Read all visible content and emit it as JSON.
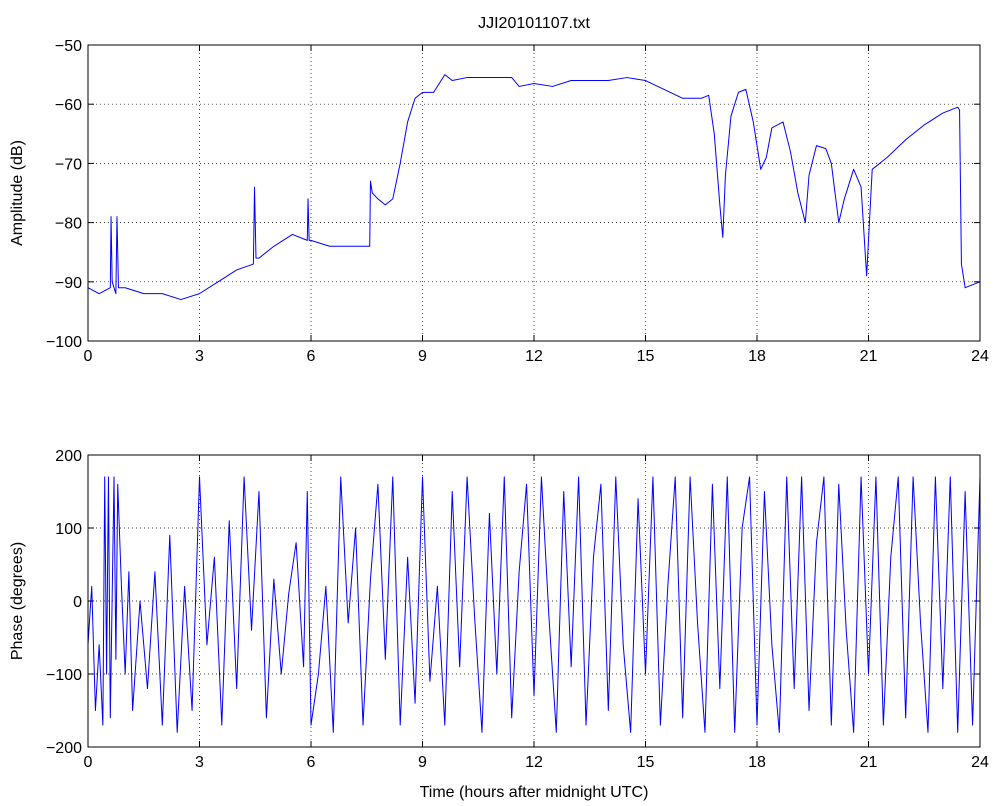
{
  "chart_data": [
    {
      "type": "line",
      "title": "JJI20101107.txt",
      "xlabel": "",
      "ylabel": "Amplitude (dB)",
      "xlim": [
        0,
        24
      ],
      "ylim": [
        -100,
        -50
      ],
      "xticks": [
        "0",
        "3",
        "6",
        "9",
        "12",
        "15",
        "18",
        "21",
        "24"
      ],
      "yticks": [
        "−100",
        "−90",
        "−80",
        "−70",
        "−60",
        "−50"
      ],
      "grid": true,
      "color": "#0000ff",
      "series": [
        {
          "x": [
            0,
            0.3,
            0.6,
            0.62,
            0.65,
            0.75,
            0.78,
            0.82,
            1.0,
            1.5,
            2.0,
            2.5,
            3.0,
            3.5,
            4.0,
            4.45,
            4.48,
            4.52,
            4.6,
            5.0,
            5.5,
            5.9,
            5.92,
            5.95,
            6.0,
            6.5,
            7.0,
            7.5,
            7.58,
            7.6,
            7.65,
            7.8,
            8.0,
            8.2,
            8.4,
            8.6,
            8.8,
            9.0,
            9.3,
            9.6,
            9.8,
            10.2,
            10.8,
            11.4,
            11.6,
            12.0,
            12.5,
            13.0,
            13.5,
            14.0,
            14.5,
            15.0,
            15.5,
            16.0,
            16.5,
            16.7,
            16.85,
            17.0,
            17.08,
            17.15,
            17.3,
            17.5,
            17.7,
            17.9,
            18.1,
            18.25,
            18.4,
            18.7,
            18.9,
            19.1,
            19.3,
            19.4,
            19.6,
            19.85,
            20.0,
            20.2,
            20.35,
            20.6,
            20.8,
            20.9,
            20.95,
            21.1,
            21.5,
            22.0,
            22.5,
            23.0,
            23.4,
            23.45,
            23.5,
            23.6,
            24.0
          ],
          "y": [
            -91,
            -92,
            -91,
            -79,
            -90,
            -92,
            -79,
            -91,
            -91,
            -92,
            -92,
            -93,
            -92,
            -90,
            -88,
            -87,
            -74,
            -86,
            -86,
            -84,
            -82,
            -83,
            -76,
            -83,
            -83,
            -84,
            -84,
            -84,
            -84,
            -73,
            -75,
            -76,
            -77,
            -76,
            -70,
            -63,
            -59,
            -58,
            -58,
            -55,
            -56,
            -55.5,
            -55.5,
            -55.5,
            -57,
            -56.5,
            -57,
            -56,
            -56,
            -56,
            -55.5,
            -56,
            -57.5,
            -59,
            -59,
            -58.5,
            -65,
            -77,
            -82.5,
            -72,
            -62,
            -58,
            -57.5,
            -63,
            -71,
            -69,
            -64,
            -63,
            -68,
            -75,
            -80,
            -72,
            -67,
            -67.5,
            -70,
            -80,
            -76,
            -71,
            -74,
            -84,
            -89,
            -71,
            -69,
            -66,
            -63.5,
            -61.5,
            -60.5,
            -61,
            -87,
            -91,
            -90
          ]
        }
      ]
    },
    {
      "type": "line",
      "title": "",
      "xlabel": "Time (hours after midnight UTC)",
      "ylabel": "Phase (degrees)",
      "xlim": [
        0,
        24
      ],
      "ylim": [
        -200,
        200
      ],
      "xticks": [
        "0",
        "3",
        "6",
        "9",
        "12",
        "15",
        "18",
        "21",
        "24"
      ],
      "yticks": [
        "−200",
        "−100",
        "0",
        "100",
        "200"
      ],
      "grid": true,
      "color": "#0000ff",
      "series": [
        {
          "x": [
            0,
            0.1,
            0.2,
            0.3,
            0.4,
            0.45,
            0.5,
            0.55,
            0.6,
            0.7,
            0.75,
            0.8,
            0.9,
            1.0,
            1.1,
            1.2,
            1.4,
            1.6,
            1.8,
            2.0,
            2.2,
            2.4,
            2.6,
            2.8,
            3.0,
            3.2,
            3.4,
            3.6,
            3.8,
            4.0,
            4.2,
            4.4,
            4.6,
            4.8,
            5.0,
            5.2,
            5.4,
            5.6,
            5.8,
            5.9,
            6.0,
            6.2,
            6.4,
            6.6,
            6.8,
            7.0,
            7.2,
            7.4,
            7.6,
            7.8,
            8.0,
            8.2,
            8.4,
            8.6,
            8.8,
            9.0,
            9.2,
            9.4,
            9.6,
            9.8,
            10.0,
            10.2,
            10.4,
            10.6,
            10.8,
            11.0,
            11.2,
            11.4,
            11.6,
            11.8,
            12.0,
            12.2,
            12.4,
            12.6,
            12.8,
            13.0,
            13.2,
            13.4,
            13.6,
            13.8,
            14.0,
            14.2,
            14.4,
            14.6,
            14.8,
            15.0,
            15.2,
            15.4,
            15.6,
            15.8,
            16.0,
            16.2,
            16.4,
            16.6,
            16.8,
            17.0,
            17.2,
            17.4,
            17.6,
            17.8,
            18.0,
            18.2,
            18.4,
            18.6,
            18.8,
            19.0,
            19.2,
            19.4,
            19.6,
            19.8,
            20.0,
            20.2,
            20.4,
            20.6,
            20.8,
            21.0,
            21.2,
            21.4,
            21.6,
            21.8,
            22.0,
            22.2,
            22.4,
            22.6,
            22.8,
            23.0,
            23.2,
            23.4,
            23.6,
            23.8,
            24.0
          ],
          "y": [
            -60,
            20,
            -150,
            -60,
            -170,
            170,
            -100,
            170,
            -160,
            170,
            -80,
            160,
            20,
            -100,
            40,
            -150,
            0,
            -120,
            40,
            -170,
            90,
            -180,
            20,
            -150,
            170,
            -60,
            60,
            -170,
            110,
            -120,
            170,
            -40,
            150,
            -160,
            30,
            -100,
            10,
            80,
            -90,
            150,
            -170,
            -100,
            20,
            -180,
            170,
            -30,
            100,
            -170,
            30,
            160,
            -80,
            170,
            -170,
            60,
            -140,
            170,
            -110,
            20,
            -170,
            150,
            -90,
            170,
            -20,
            -180,
            120,
            -100,
            170,
            -160,
            40,
            160,
            -130,
            170,
            -20,
            -180,
            150,
            -90,
            170,
            -170,
            60,
            160,
            -150,
            170,
            -60,
            -180,
            140,
            -100,
            170,
            -170,
            20,
            170,
            -160,
            170,
            -30,
            -180,
            160,
            -120,
            170,
            -180,
            100,
            170,
            -170,
            150,
            -60,
            -180,
            170,
            -120,
            170,
            -150,
            80,
            170,
            -170,
            160,
            -40,
            -180,
            170,
            -100,
            170,
            -170,
            60,
            170,
            -160,
            170,
            -30,
            -180,
            170,
            -120,
            170,
            -180,
            150,
            -170,
            170
          ]
        }
      ]
    }
  ]
}
